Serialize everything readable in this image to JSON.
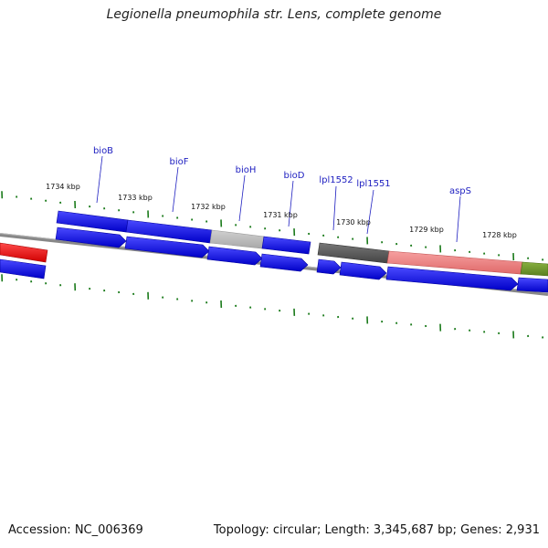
{
  "title": "Legionella pneumophila str. Lens, complete genome",
  "footer": {
    "accession": "Accession: NC_006369",
    "summary": "Topology: circular; Length: 3,345,687 bp; Genes: 2,931"
  },
  "ruler_labels": [
    "1734 kbp",
    "1733 kbp",
    "1732 kbp",
    "1731 kbp",
    "1730 kbp",
    "1729 kbp",
    "1728 kbp"
  ],
  "gene_labels": [
    "bioB",
    "bioF",
    "bioH",
    "bioD",
    "lpl1552",
    "lpl1551",
    "aspS"
  ],
  "colors": {
    "cds": "#1010ee",
    "backbone": "#888888",
    "tick": "#1a7a1a",
    "label": "#1d1ec0",
    "red_feature": "#ee1a1a",
    "pink_feature": "#f08080",
    "dark_feature": "#555555",
    "light_feature": "#bbbbbb",
    "green_feature": "#6f9a2a"
  }
}
